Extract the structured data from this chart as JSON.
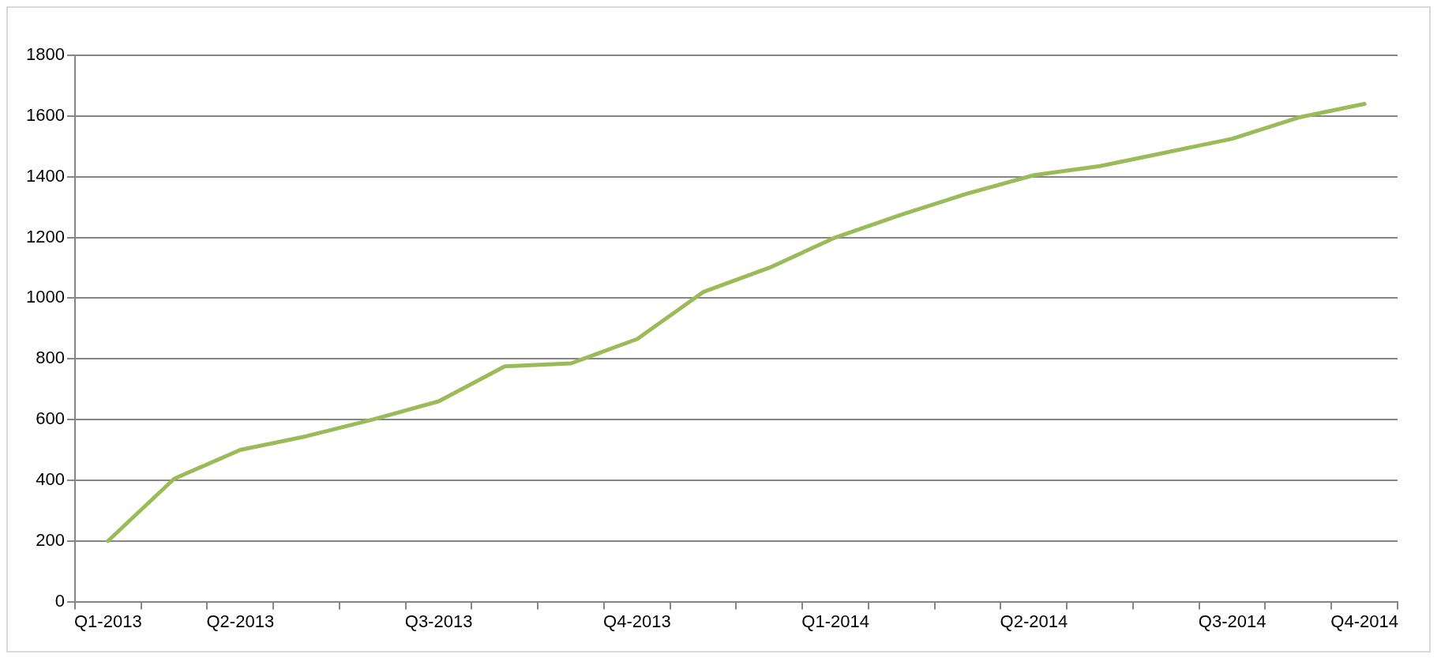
{
  "chart_data": {
    "type": "line",
    "categories": [
      "Q1-2013",
      null,
      "Q2-2013",
      null,
      null,
      "Q3-2013",
      null,
      null,
      "Q4-2013",
      null,
      null,
      "Q1-2014",
      null,
      null,
      "Q2-2014",
      null,
      null,
      "Q3-2014",
      null,
      "Q4-2014"
    ],
    "series": [
      {
        "color": "#9bbb59",
        "values": [
          200,
          405,
          500,
          545,
          600,
          660,
          775,
          785,
          865,
          1020,
          1100,
          1200,
          1275,
          1345,
          1405,
          1435,
          1480,
          1525,
          1595,
          1640
        ]
      }
    ],
    "ylim": [
      0,
      1800
    ],
    "yticks": [
      0,
      200,
      400,
      600,
      800,
      1000,
      1200,
      1400,
      1600,
      1800
    ],
    "grid": "y",
    "legend": false,
    "marker": "none",
    "line_style": "solid"
  }
}
